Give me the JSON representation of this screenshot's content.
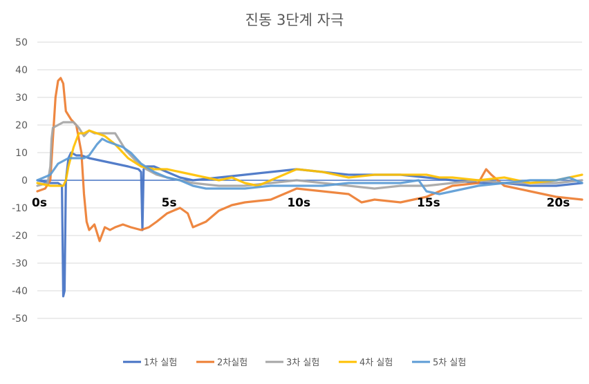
{
  "chart_data": {
    "type": "line",
    "title": "진동 3단계 자극",
    "xlabel": "",
    "ylabel": "",
    "ylim": [
      -50,
      50
    ],
    "xlim": [
      0,
      21
    ],
    "yticks": [
      "50",
      "40",
      "30",
      "20",
      "10",
      "0",
      "-10",
      "-20",
      "-30",
      "-40",
      "-50"
    ],
    "xtick_labels": [
      {
        "x": 0,
        "label": "0s"
      },
      {
        "x": 5,
        "label": "5s"
      },
      {
        "x": 10,
        "label": "10s"
      },
      {
        "x": 15,
        "label": "15s"
      },
      {
        "x": 20,
        "label": "20s"
      }
    ],
    "grid": true,
    "legend_position": "bottom",
    "colors": {
      "s1": "#4472C4",
      "s2": "#ED7D31",
      "s3": "#A5A5A5",
      "s4": "#FFC000",
      "s5": "#5B9BD5",
      "grid": "#D9D9D9",
      "axis_text": "#595959",
      "title": "#595959"
    },
    "series": [
      {
        "name": "1차 실험",
        "color": "#4472C4",
        "x": [
          0,
          0.5,
          0.8,
          0.95,
          1.0,
          1.05,
          1.1,
          1.2,
          1.3,
          1.5,
          1.7,
          2.0,
          2.5,
          3.0,
          3.5,
          3.9,
          4.0,
          4.05,
          4.1,
          4.2,
          4.5,
          5.0,
          5.5,
          6.0,
          7.0,
          8.0,
          9.0,
          10.0,
          11.0,
          12.0,
          13.0,
          14.0,
          15.0,
          16.0,
          17.0,
          18.0,
          19.0,
          20.0,
          21.0
        ],
        "y": [
          0,
          -1,
          -1,
          -2,
          -42,
          -40,
          0,
          8,
          10,
          9,
          9,
          8,
          7,
          6,
          5,
          4,
          3,
          -18,
          4,
          5,
          5,
          3,
          1,
          0,
          1,
          2,
          3,
          4,
          3,
          2,
          2,
          2,
          1,
          0,
          -1,
          -1,
          -2,
          -2,
          -1
        ]
      },
      {
        "name": "2차실험",
        "color": "#ED7D31",
        "x": [
          0,
          0.3,
          0.5,
          0.6,
          0.7,
          0.8,
          0.9,
          1.0,
          1.1,
          1.3,
          1.5,
          1.7,
          1.8,
          1.9,
          2.0,
          2.2,
          2.4,
          2.6,
          2.8,
          3.0,
          3.3,
          3.6,
          4.0,
          4.3,
          4.6,
          5.0,
          5.5,
          5.8,
          6.0,
          6.5,
          7.0,
          7.5,
          8.0,
          9.0,
          10.0,
          11.0,
          12.0,
          12.5,
          13.0,
          14.0,
          15.0,
          16.0,
          17.0,
          17.3,
          17.5,
          18.0,
          19.0,
          20.0,
          21.0
        ],
        "y": [
          -4,
          -3,
          0,
          15,
          30,
          36,
          37,
          35,
          25,
          22,
          20,
          10,
          -5,
          -15,
          -18,
          -16,
          -22,
          -17,
          -18,
          -17,
          -16,
          -17,
          -18,
          -17,
          -15,
          -12,
          -10,
          -12,
          -17,
          -15,
          -11,
          -9,
          -8,
          -7,
          -3,
          -4,
          -5,
          -8,
          -7,
          -8,
          -6,
          -2,
          -1,
          4,
          2,
          -2,
          -4,
          -6,
          -7
        ]
      },
      {
        "name": "3차 실험",
        "color": "#A5A5A5",
        "x": [
          0,
          0.4,
          0.5,
          0.55,
          0.6,
          0.8,
          1.0,
          1.2,
          1.4,
          1.6,
          1.8,
          2.0,
          2.2,
          2.5,
          3.0,
          3.4,
          3.8,
          4.2,
          4.6,
          5.0,
          5.5,
          6.0,
          7.0,
          8.0,
          9.0,
          10.0,
          11.0,
          12.0,
          13.0,
          14.0,
          15.0,
          16.0,
          17.0,
          18.0,
          19.0,
          20.0,
          21.0
        ],
        "y": [
          -2,
          -1,
          5,
          15,
          19,
          20,
          21,
          21,
          21,
          19,
          16,
          18,
          17,
          17,
          17,
          11,
          7,
          4,
          2,
          1,
          0,
          -1,
          -2,
          -2,
          -1,
          0,
          -1,
          -2,
          -3,
          -2,
          -2,
          -1,
          0,
          -1,
          -1,
          -1,
          0
        ]
      },
      {
        "name": "4차 실험",
        "color": "#FFC000",
        "x": [
          0,
          0.5,
          1.0,
          1.1,
          1.2,
          1.4,
          1.6,
          1.8,
          2.0,
          2.3,
          2.6,
          3.0,
          3.5,
          4.0,
          4.5,
          5.0,
          5.5,
          6.0,
          6.5,
          7.0,
          7.5,
          8.0,
          8.5,
          9.0,
          10.0,
          11.0,
          12.0,
          13.0,
          14.0,
          15.0,
          15.5,
          16.0,
          17.0,
          18.0,
          19.0,
          20.0,
          20.5,
          21.0
        ],
        "y": [
          -1,
          -2,
          -2,
          0,
          5,
          12,
          17,
          17,
          18,
          17,
          16,
          13,
          8,
          5,
          4,
          4,
          3,
          2,
          1,
          0,
          1,
          -1,
          -2,
          0,
          4,
          3,
          1,
          2,
          2,
          2,
          1,
          1,
          0,
          1,
          -1,
          0,
          1,
          2
        ]
      },
      {
        "name": "5차 실험",
        "color": "#5B9BD5",
        "x": [
          0,
          0.5,
          0.8,
          1.0,
          1.2,
          1.5,
          1.8,
          2.0,
          2.3,
          2.5,
          2.7,
          3.0,
          3.3,
          3.6,
          4.0,
          4.5,
          5.0,
          5.5,
          6.0,
          6.5,
          7.0,
          8.0,
          9.0,
          10.0,
          11.0,
          12.0,
          13.0,
          14.0,
          14.7,
          15.0,
          15.5,
          16.0,
          17.0,
          18.0,
          19.0,
          20.0,
          20.5,
          21.0
        ],
        "y": [
          0,
          2,
          6,
          7,
          8,
          8,
          8,
          9,
          13,
          15,
          14,
          13,
          12,
          10,
          6,
          3,
          1,
          0,
          -2,
          -3,
          -3,
          -3,
          -2,
          -2,
          -2,
          -1,
          -1,
          -1,
          0,
          -4,
          -5,
          -4,
          -2,
          -1,
          0,
          0,
          1,
          -1
        ]
      }
    ]
  }
}
